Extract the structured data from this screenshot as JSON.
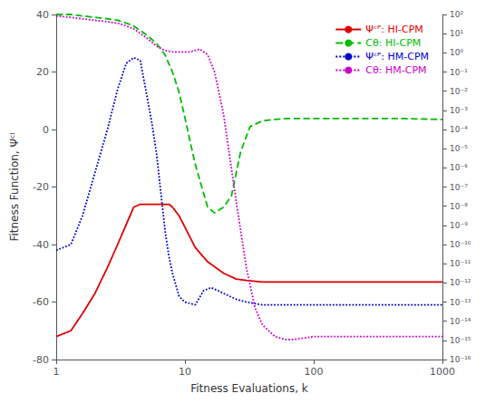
{
  "chart_data": {
    "type": "line",
    "xlabel": "Fitness Evaluations, k",
    "ylabel": "Fitness Function, Ψᶜᴵ",
    "log": "x",
    "grid": false,
    "legend": "upper right",
    "xlim": [
      1,
      1000
    ],
    "xticks": [
      1,
      10,
      100,
      1000
    ],
    "ylim": [
      -80,
      40
    ],
    "yticks": [
      -80,
      -60,
      -40,
      -20,
      0,
      20,
      40
    ],
    "y2lim": [
      1e-16,
      100
    ],
    "y2ticks": [
      {
        "value": 1e-16,
        "label": "10⁻¹⁶"
      },
      {
        "value": 1e-15,
        "label": "10⁻¹⁵"
      },
      {
        "value": 1e-14,
        "label": "10⁻¹⁴"
      },
      {
        "value": 1e-13,
        "label": "10⁻¹³"
      },
      {
        "value": 1e-12,
        "label": "10⁻¹²"
      },
      {
        "value": 1e-11,
        "label": "10⁻¹¹"
      },
      {
        "value": 1e-10,
        "label": "10⁻¹⁰"
      },
      {
        "value": 1e-09,
        "label": "10⁻⁹"
      },
      {
        "value": 1e-08,
        "label": "10⁻⁸"
      },
      {
        "value": 1e-07,
        "label": "10⁻⁷"
      },
      {
        "value": 1e-06,
        "label": "10⁻⁶"
      },
      {
        "value": 1e-05,
        "label": "10⁻⁵"
      },
      {
        "value": 0.0001,
        "label": "10⁻⁴"
      },
      {
        "value": 0.001,
        "label": "10⁻³"
      },
      {
        "value": 0.01,
        "label": "10⁻²"
      },
      {
        "value": 0.1,
        "label": "10⁻¹"
      },
      {
        "value": 1,
        "label": "10⁰"
      },
      {
        "value": 10,
        "label": "10¹"
      },
      {
        "value": 100,
        "label": "10²"
      }
    ],
    "series": [
      {
        "name": "Ψᶜᴾ: HI-CPM",
        "color": "#dd0000",
        "line_style": "solid",
        "x": [
          1,
          1.3,
          1.6,
          2,
          2.5,
          3,
          3.5,
          4,
          4.5,
          5,
          5.5,
          6,
          6.5,
          7,
          7.5,
          8,
          9,
          10,
          12,
          15,
          20,
          25,
          30,
          40,
          50,
          70,
          100,
          200,
          500,
          1000
        ],
        "values": [
          -72,
          -70,
          -64,
          -57,
          -48,
          -40,
          -33,
          -27,
          -26,
          -26,
          -26,
          -26,
          -26,
          -26,
          -26,
          -27,
          -30,
          -34,
          -41,
          -46,
          -50,
          -52,
          -52.5,
          -53,
          -53,
          -53,
          -53,
          -53,
          -53,
          -53
        ]
      },
      {
        "name": "Cθ: HI-CPM",
        "color": "#00bb00",
        "line_style": "dashed",
        "x": [
          1,
          1.3,
          1.6,
          2,
          2.5,
          3,
          3.5,
          4,
          5,
          6,
          7,
          8,
          9,
          10,
          12,
          15,
          17,
          20,
          23,
          27,
          32,
          40,
          50,
          60,
          70,
          100,
          200,
          500,
          1000
        ],
        "values": [
          40,
          40,
          39.5,
          39,
          38.5,
          38,
          37,
          36,
          33,
          30,
          26,
          20,
          13,
          4,
          -12,
          -27,
          -29,
          -27,
          -23,
          -8,
          1,
          3,
          3.5,
          3.8,
          3.8,
          3.8,
          3.8,
          3.8,
          3.5
        ]
      },
      {
        "name": "Ψᶜᴾ: HM-CPM",
        "color": "#0000cc",
        "line_style": "dotted",
        "x": [
          1,
          1.3,
          1.6,
          2,
          2.5,
          3,
          3.5,
          4,
          4.5,
          5,
          5.5,
          6,
          6.5,
          7,
          7.5,
          8,
          9,
          10,
          12,
          14,
          16,
          18,
          20,
          25,
          30,
          40,
          50,
          70,
          100,
          200,
          500,
          1000
        ],
        "values": [
          -42,
          -40,
          -30,
          -15,
          0,
          14,
          23,
          25,
          24,
          13,
          3,
          -8,
          -22,
          -35,
          -44,
          -50,
          -58,
          -60,
          -61,
          -56,
          -55,
          -56,
          -57,
          -59,
          -60,
          -61,
          -61,
          -61,
          -61,
          -61,
          -61,
          -61
        ]
      },
      {
        "name": "Cθ: HM-CPM",
        "color": "#cc00cc",
        "line_style": "dotted",
        "x": [
          1,
          1.3,
          1.6,
          2,
          2.5,
          3,
          3.5,
          4,
          5,
          6,
          7,
          8,
          9,
          10,
          11,
          12,
          13,
          14,
          15,
          17,
          20,
          25,
          30,
          35,
          40,
          50,
          60,
          70,
          100,
          200,
          500,
          1000
        ],
        "values": [
          39.5,
          39,
          38.5,
          38,
          37.5,
          37,
          36,
          35,
          32,
          29,
          27.5,
          27,
          27,
          27,
          27,
          27.5,
          28,
          27,
          26,
          20,
          5,
          -25,
          -48,
          -62,
          -68,
          -72,
          -73,
          -73,
          -72,
          -72,
          -72,
          -72
        ]
      }
    ]
  }
}
